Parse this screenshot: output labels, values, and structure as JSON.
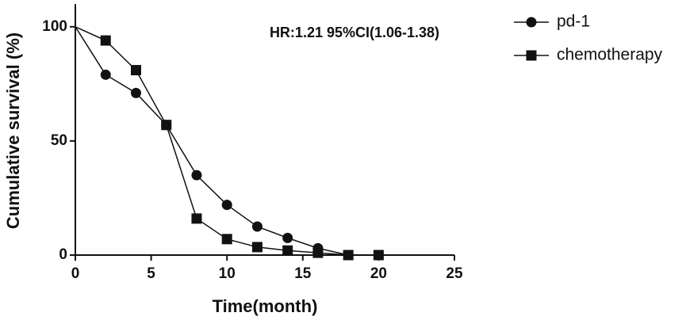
{
  "chart_data": {
    "type": "line",
    "annotation": "HR:1.21 95%CI(1.06-1.38)",
    "x_label": "Time(month)",
    "y_label": "Cumulative survival (%)",
    "x": [
      0,
      2,
      4,
      6,
      8,
      10,
      12,
      14,
      16,
      18,
      20
    ],
    "series": [
      {
        "name": "pd-1",
        "color": "#111111",
        "marker": "circle",
        "values": [
          100,
          79,
          71,
          57,
          35,
          22,
          12.5,
          7.5,
          3,
          0,
          null
        ]
      },
      {
        "name": "chemotherapy",
        "color": "#111111",
        "marker": "square",
        "values": [
          100,
          94,
          81,
          57,
          16,
          7,
          3.5,
          2,
          1,
          0,
          0
        ]
      }
    ],
    "xlim": [
      0,
      25
    ],
    "xticks": [
      0,
      5,
      10,
      15,
      20,
      25
    ],
    "ylim": [
      0,
      110
    ],
    "yticks": [
      0,
      50,
      100
    ],
    "legend": "right"
  }
}
